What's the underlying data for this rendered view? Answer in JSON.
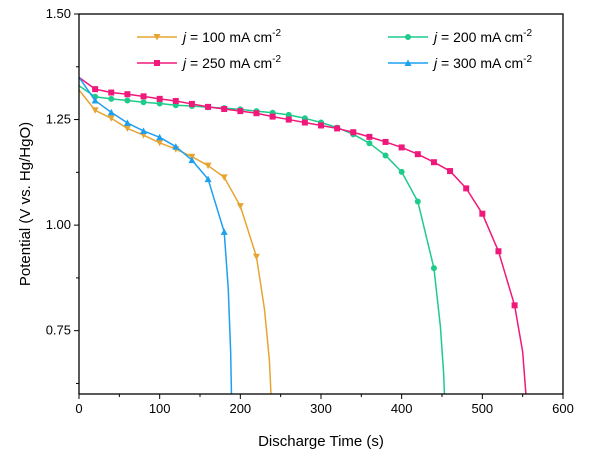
{
  "chart_data": {
    "type": "line",
    "title": "",
    "xlabel": "Discharge Time (s)",
    "ylabel": "Potential (V vs. Hg/HgO)",
    "xlim": [
      0,
      600
    ],
    "ylim": [
      0.6,
      1.5
    ],
    "xticks": [
      0,
      100,
      200,
      300,
      400,
      500,
      600
    ],
    "xtick_labels": [
      "0",
      "100",
      "200",
      "300",
      "400",
      "500",
      "600"
    ],
    "yticks": [
      0.75,
      1.0,
      1.25,
      1.5
    ],
    "ytick_labels": [
      "0.75",
      "1.00",
      "1.25",
      "1.50"
    ],
    "grid": false,
    "legend_position": "top",
    "series": [
      {
        "name": "j = 100 mA cm-2",
        "label_j": "j",
        "label_rest": " = 100 mA cm",
        "label_sup": "-2",
        "color": "#E6A532",
        "marker": "triangle-down",
        "x": [
          0,
          20,
          40,
          60,
          80,
          100,
          120,
          140,
          160,
          180,
          200,
          220,
          230,
          236,
          238
        ],
        "y": [
          1.32,
          1.272,
          1.253,
          1.229,
          1.213,
          1.195,
          1.18,
          1.162,
          1.141,
          1.113,
          1.045,
          0.925,
          0.8,
          0.68,
          0.6
        ]
      },
      {
        "name": "j = 200 mA cm-2",
        "label_j": "j",
        "label_rest": " = 200 mA cm",
        "label_sup": "-2",
        "color": "#1FCB8B",
        "marker": "circle",
        "x": [
          0,
          20,
          40,
          60,
          80,
          100,
          120,
          140,
          160,
          180,
          200,
          220,
          240,
          260,
          280,
          300,
          320,
          340,
          360,
          380,
          400,
          420,
          440,
          448,
          452,
          453
        ],
        "y": [
          1.33,
          1.304,
          1.299,
          1.295,
          1.291,
          1.288,
          1.284,
          1.282,
          1.279,
          1.277,
          1.274,
          1.27,
          1.266,
          1.261,
          1.253,
          1.243,
          1.231,
          1.215,
          1.194,
          1.165,
          1.126,
          1.056,
          0.898,
          0.76,
          0.65,
          0.6
        ]
      },
      {
        "name": "j = 250 mA cm-2",
        "label_j": "j",
        "label_rest": " = 250 mA cm",
        "label_sup": "-2",
        "color": "#F0187A",
        "marker": "square",
        "x": [
          0,
          20,
          40,
          60,
          80,
          100,
          120,
          140,
          160,
          180,
          200,
          220,
          240,
          260,
          280,
          300,
          320,
          340,
          360,
          380,
          400,
          420,
          440,
          460,
          480,
          500,
          520,
          540,
          550,
          554
        ],
        "y": [
          1.35,
          1.322,
          1.314,
          1.31,
          1.305,
          1.299,
          1.294,
          1.287,
          1.28,
          1.275,
          1.27,
          1.265,
          1.257,
          1.25,
          1.243,
          1.236,
          1.229,
          1.22,
          1.209,
          1.197,
          1.184,
          1.168,
          1.149,
          1.128,
          1.087,
          1.027,
          0.938,
          0.81,
          0.7,
          0.6
        ]
      },
      {
        "name": "j = 300 mA cm-2",
        "label_j": "j",
        "label_rest": " = 300 mA cm",
        "label_sup": "-2",
        "color": "#1EA0F0",
        "marker": "triangle-up",
        "x": [
          0,
          20,
          40,
          60,
          80,
          100,
          120,
          140,
          160,
          180,
          185,
          188,
          189
        ],
        "y": [
          1.35,
          1.295,
          1.267,
          1.242,
          1.223,
          1.208,
          1.186,
          1.154,
          1.109,
          0.984,
          0.85,
          0.7,
          0.6
        ]
      }
    ]
  }
}
